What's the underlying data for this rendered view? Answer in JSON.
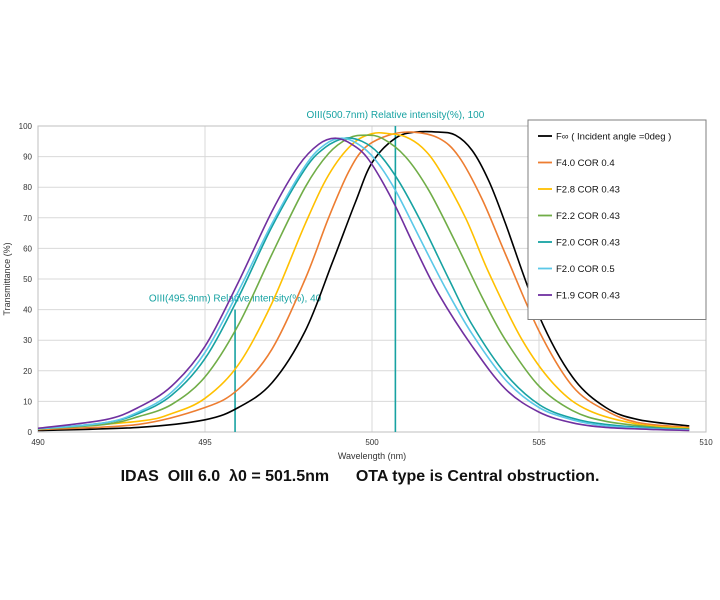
{
  "chart_data": {
    "type": "line",
    "title": "IDAS  OIII 6.0  λ0 = 501.5nm      OTA type is Central obstruction.",
    "xlabel": "Wavelength (nm)",
    "ylabel": "Transmittance (%)",
    "xlim": [
      490,
      510
    ],
    "ylim": [
      0,
      100
    ],
    "xticks": [
      490,
      495,
      500,
      505,
      510
    ],
    "yticks": [
      0,
      10,
      20,
      30,
      40,
      50,
      60,
      70,
      80,
      90,
      100
    ],
    "grid": true,
    "legend_position": "top-right",
    "series": [
      {
        "name": "F∞ ( Incident angle =0deg )",
        "color": "#000000",
        "x": [
          490,
          493,
          495,
          496,
          497,
          498,
          498.8,
          499.5,
          500,
          500.7,
          501.3,
          502,
          502.5,
          503,
          503.5,
          504,
          505,
          506,
          507,
          508,
          509.5
        ],
        "y": [
          0.5,
          1.5,
          4,
          8,
          16,
          33,
          55,
          75,
          88,
          96,
          98,
          98,
          97,
          92,
          82,
          68,
          38,
          18,
          8,
          4,
          2
        ]
      },
      {
        "name": "F4.0 COR 0.4",
        "color": "#ED7D31",
        "x": [
          490,
          493,
          495,
          496,
          497,
          498,
          498.7,
          499.3,
          499.8,
          500.5,
          501.2,
          502,
          502.6,
          503.3,
          504,
          505,
          506,
          507,
          508,
          509.5
        ],
        "y": [
          0.8,
          2.5,
          8,
          14,
          27,
          50,
          70,
          85,
          93,
          97,
          98,
          96,
          90,
          76,
          58,
          33,
          15,
          7,
          3,
          1.5
        ]
      },
      {
        "name": "F2.8 COR 0.43",
        "color": "#FFC000",
        "x": [
          490,
          493,
          494,
          495,
          496,
          497,
          498,
          498.7,
          499.4,
          500,
          500.5,
          501,
          501.5,
          502,
          502.8,
          503.5,
          504.5,
          505.5,
          506.5,
          508,
          509.5
        ],
        "y": [
          0.9,
          3.5,
          6,
          11,
          22,
          42,
          68,
          84,
          94,
          97.5,
          97.5,
          96.5,
          93,
          86,
          70,
          52,
          30,
          15,
          7,
          2.5,
          1.2
        ]
      },
      {
        "name": "F2.2 COR 0.43",
        "color": "#70AD47",
        "x": [
          490,
          492,
          493,
          494,
          495,
          496,
          497,
          498,
          498.7,
          499.3,
          499.8,
          500.3,
          501,
          501.7,
          502.5,
          503.3,
          504,
          505,
          506,
          507,
          508.5,
          509.5
        ],
        "y": [
          1,
          2.5,
          5,
          9,
          18,
          35,
          58,
          80,
          91,
          96,
          97,
          96,
          90,
          79,
          62,
          44,
          30,
          15,
          7,
          3.5,
          1.5,
          1
        ]
      },
      {
        "name": "F2.0 COR 0.43",
        "color": "#17A2A2",
        "x": [
          490,
          492,
          493,
          494,
          495,
          496,
          497,
          498,
          498.6,
          499.2,
          499.7,
          500.2,
          500.8,
          501.5,
          502.3,
          503,
          504,
          505,
          506,
          507,
          508.5,
          509.5
        ],
        "y": [
          1,
          3,
          6,
          12,
          24,
          44,
          67,
          86,
          93,
          96,
          95,
          91,
          82,
          68,
          50,
          35,
          19,
          9,
          4.5,
          2.5,
          1.2,
          0.8
        ]
      },
      {
        "name": "F2.0 COR 0.5",
        "color": "#5BC8E8",
        "x": [
          490,
          492,
          493,
          494,
          495,
          496,
          497,
          498,
          498.6,
          499.1,
          499.6,
          500.1,
          500.7,
          501.4,
          502.2,
          503,
          504,
          505,
          506,
          507,
          508.5,
          509.5
        ],
        "y": [
          1,
          3,
          6.5,
          13,
          26,
          46,
          68,
          87,
          94,
          96,
          94,
          89,
          79,
          64,
          47,
          32,
          17,
          8,
          4,
          2,
          1,
          0.7
        ]
      },
      {
        "name": "F1.9 COR 0.43",
        "color": "#7030A0",
        "x": [
          490,
          492,
          493,
          494,
          495,
          496,
          497,
          497.8,
          498.4,
          498.9,
          499.4,
          499.9,
          500.6,
          501.3,
          502,
          503,
          504,
          505,
          506,
          507,
          508.5,
          509.5
        ],
        "y": [
          1.2,
          4,
          8,
          15,
          28,
          49,
          72,
          87,
          94,
          96,
          94,
          89,
          76,
          60,
          45,
          28,
          14,
          6.5,
          3,
          1.5,
          0.8,
          0.5
        ]
      }
    ],
    "annotations": [
      {
        "label": "OIII(500.7nm)  Relative intensity(%), 100",
        "x": 500.7,
        "y": 100,
        "color": "#17A2A2"
      },
      {
        "label": "OIII(495.9nm)  Relative intensity(%), 40",
        "x": 495.9,
        "y": 40,
        "color": "#17A2A2"
      }
    ]
  },
  "caption": "IDAS  OIII 6.0  λ0 = 501.5nm      OTA type is Central obstruction."
}
